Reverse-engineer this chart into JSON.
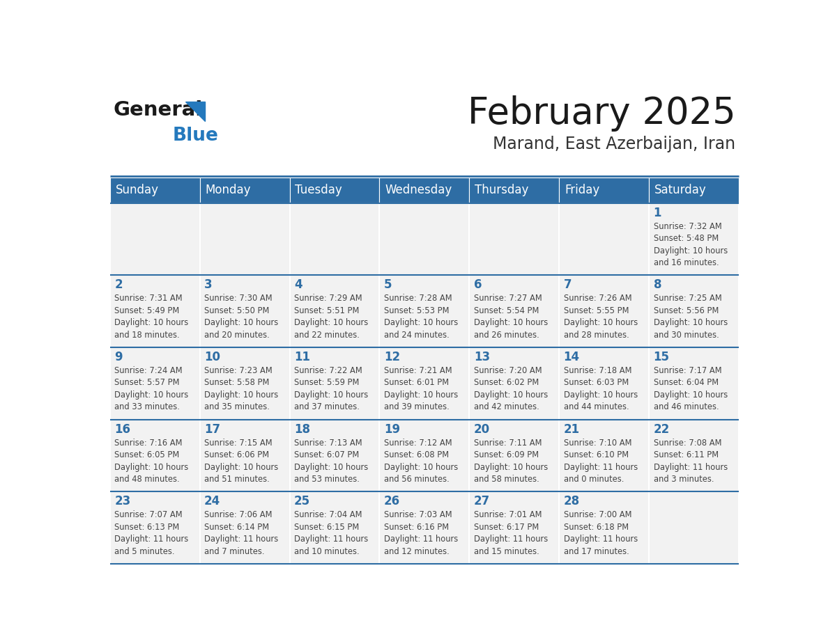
{
  "title": "February 2025",
  "subtitle": "Marand, East Azerbaijan, Iran",
  "days_of_week": [
    "Sunday",
    "Monday",
    "Tuesday",
    "Wednesday",
    "Thursday",
    "Friday",
    "Saturday"
  ],
  "header_bg": "#2E6DA4",
  "header_text": "#FFFFFF",
  "cell_bg": "#F2F2F2",
  "cell_border": "#FFFFFF",
  "day_number_color": "#2E6DA4",
  "info_text_color": "#444444",
  "title_color": "#1A1A1A",
  "subtitle_color": "#333333",
  "logo_general_color": "#1A1A1A",
  "logo_blue_color": "#2479BD",
  "calendar_data": [
    [
      {
        "day": null,
        "info": ""
      },
      {
        "day": null,
        "info": ""
      },
      {
        "day": null,
        "info": ""
      },
      {
        "day": null,
        "info": ""
      },
      {
        "day": null,
        "info": ""
      },
      {
        "day": null,
        "info": ""
      },
      {
        "day": 1,
        "info": "Sunrise: 7:32 AM\nSunset: 5:48 PM\nDaylight: 10 hours\nand 16 minutes."
      }
    ],
    [
      {
        "day": 2,
        "info": "Sunrise: 7:31 AM\nSunset: 5:49 PM\nDaylight: 10 hours\nand 18 minutes."
      },
      {
        "day": 3,
        "info": "Sunrise: 7:30 AM\nSunset: 5:50 PM\nDaylight: 10 hours\nand 20 minutes."
      },
      {
        "day": 4,
        "info": "Sunrise: 7:29 AM\nSunset: 5:51 PM\nDaylight: 10 hours\nand 22 minutes."
      },
      {
        "day": 5,
        "info": "Sunrise: 7:28 AM\nSunset: 5:53 PM\nDaylight: 10 hours\nand 24 minutes."
      },
      {
        "day": 6,
        "info": "Sunrise: 7:27 AM\nSunset: 5:54 PM\nDaylight: 10 hours\nand 26 minutes."
      },
      {
        "day": 7,
        "info": "Sunrise: 7:26 AM\nSunset: 5:55 PM\nDaylight: 10 hours\nand 28 minutes."
      },
      {
        "day": 8,
        "info": "Sunrise: 7:25 AM\nSunset: 5:56 PM\nDaylight: 10 hours\nand 30 minutes."
      }
    ],
    [
      {
        "day": 9,
        "info": "Sunrise: 7:24 AM\nSunset: 5:57 PM\nDaylight: 10 hours\nand 33 minutes."
      },
      {
        "day": 10,
        "info": "Sunrise: 7:23 AM\nSunset: 5:58 PM\nDaylight: 10 hours\nand 35 minutes."
      },
      {
        "day": 11,
        "info": "Sunrise: 7:22 AM\nSunset: 5:59 PM\nDaylight: 10 hours\nand 37 minutes."
      },
      {
        "day": 12,
        "info": "Sunrise: 7:21 AM\nSunset: 6:01 PM\nDaylight: 10 hours\nand 39 minutes."
      },
      {
        "day": 13,
        "info": "Sunrise: 7:20 AM\nSunset: 6:02 PM\nDaylight: 10 hours\nand 42 minutes."
      },
      {
        "day": 14,
        "info": "Sunrise: 7:18 AM\nSunset: 6:03 PM\nDaylight: 10 hours\nand 44 minutes."
      },
      {
        "day": 15,
        "info": "Sunrise: 7:17 AM\nSunset: 6:04 PM\nDaylight: 10 hours\nand 46 minutes."
      }
    ],
    [
      {
        "day": 16,
        "info": "Sunrise: 7:16 AM\nSunset: 6:05 PM\nDaylight: 10 hours\nand 48 minutes."
      },
      {
        "day": 17,
        "info": "Sunrise: 7:15 AM\nSunset: 6:06 PM\nDaylight: 10 hours\nand 51 minutes."
      },
      {
        "day": 18,
        "info": "Sunrise: 7:13 AM\nSunset: 6:07 PM\nDaylight: 10 hours\nand 53 minutes."
      },
      {
        "day": 19,
        "info": "Sunrise: 7:12 AM\nSunset: 6:08 PM\nDaylight: 10 hours\nand 56 minutes."
      },
      {
        "day": 20,
        "info": "Sunrise: 7:11 AM\nSunset: 6:09 PM\nDaylight: 10 hours\nand 58 minutes."
      },
      {
        "day": 21,
        "info": "Sunrise: 7:10 AM\nSunset: 6:10 PM\nDaylight: 11 hours\nand 0 minutes."
      },
      {
        "day": 22,
        "info": "Sunrise: 7:08 AM\nSunset: 6:11 PM\nDaylight: 11 hours\nand 3 minutes."
      }
    ],
    [
      {
        "day": 23,
        "info": "Sunrise: 7:07 AM\nSunset: 6:13 PM\nDaylight: 11 hours\nand 5 minutes."
      },
      {
        "day": 24,
        "info": "Sunrise: 7:06 AM\nSunset: 6:14 PM\nDaylight: 11 hours\nand 7 minutes."
      },
      {
        "day": 25,
        "info": "Sunrise: 7:04 AM\nSunset: 6:15 PM\nDaylight: 11 hours\nand 10 minutes."
      },
      {
        "day": 26,
        "info": "Sunrise: 7:03 AM\nSunset: 6:16 PM\nDaylight: 11 hours\nand 12 minutes."
      },
      {
        "day": 27,
        "info": "Sunrise: 7:01 AM\nSunset: 6:17 PM\nDaylight: 11 hours\nand 15 minutes."
      },
      {
        "day": 28,
        "info": "Sunrise: 7:00 AM\nSunset: 6:18 PM\nDaylight: 11 hours\nand 17 minutes."
      },
      {
        "day": null,
        "info": ""
      }
    ]
  ]
}
